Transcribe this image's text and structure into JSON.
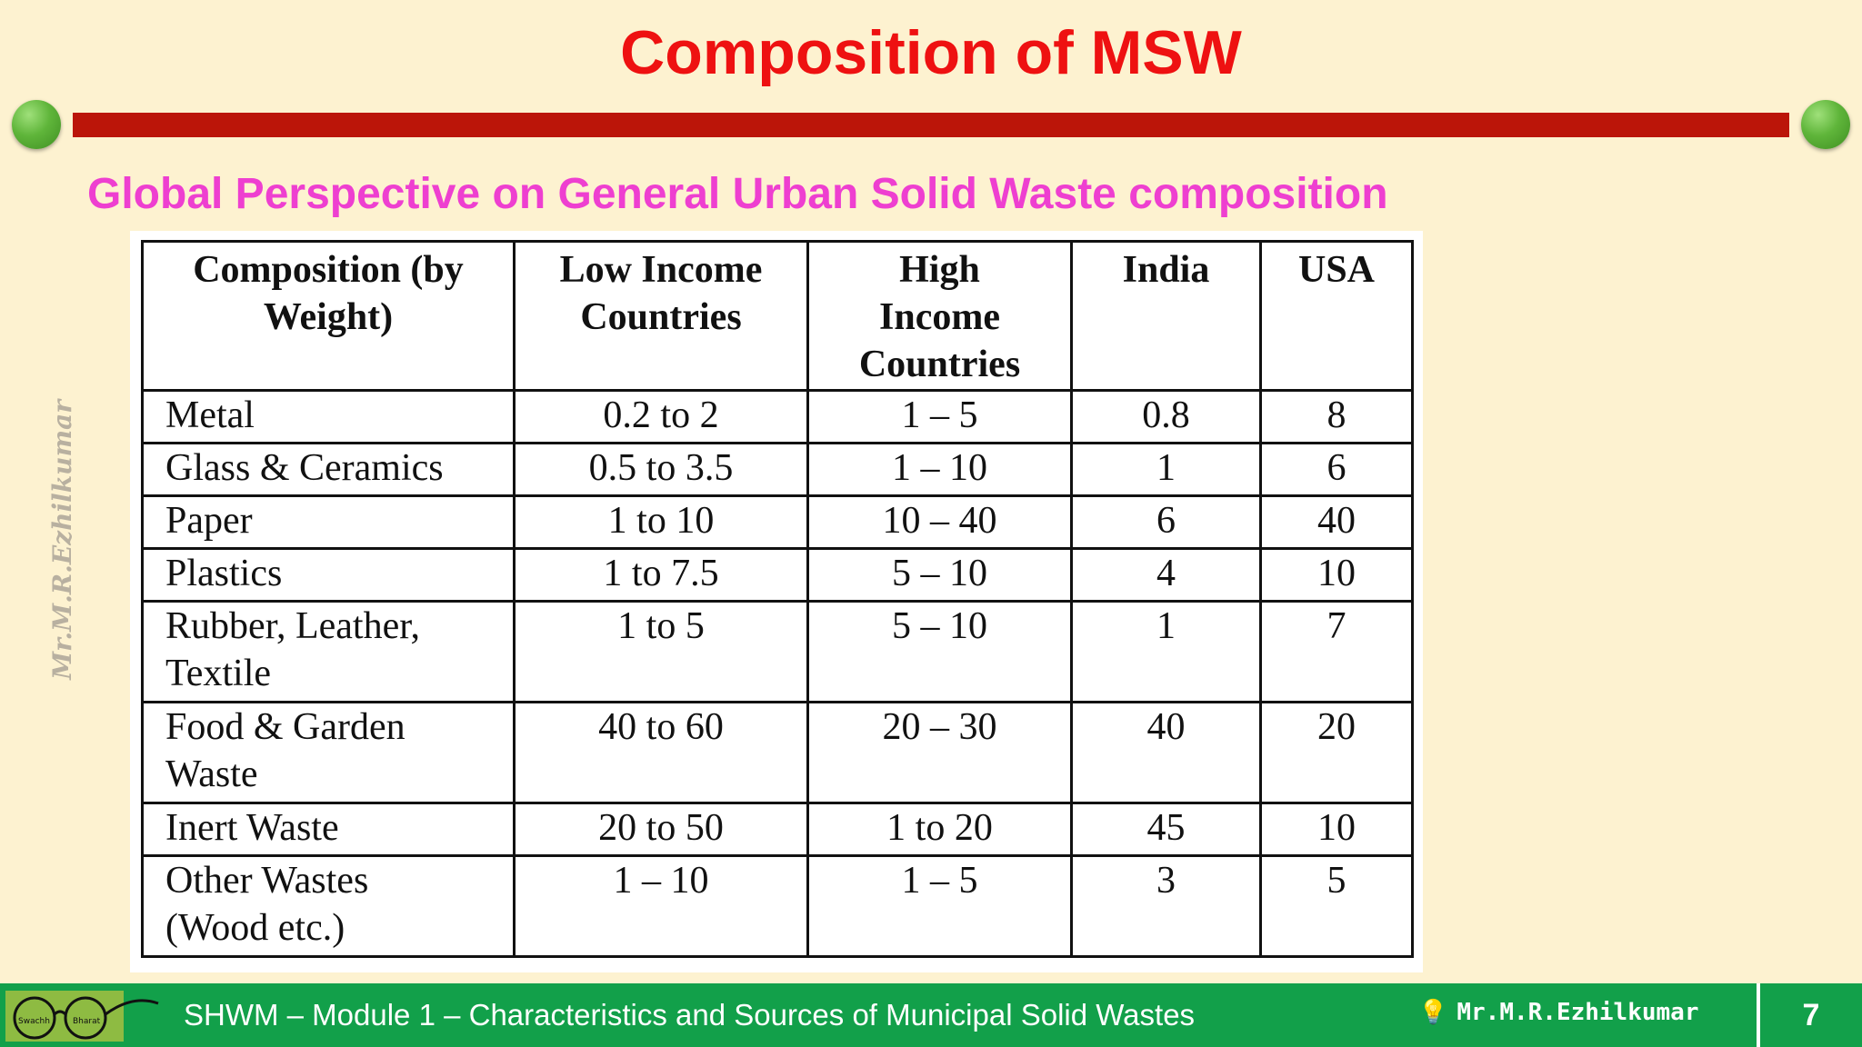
{
  "slide": {
    "title": "Composition of MSW",
    "subtitle": "Global Perspective on General Urban Solid Waste composition"
  },
  "table": {
    "headers": [
      [
        "Composition (by",
        "Weight)"
      ],
      [
        "Low Income",
        "Countries"
      ],
      [
        "High",
        "Income",
        "Countries"
      ],
      [
        "India"
      ],
      [
        "USA"
      ]
    ],
    "rows": [
      {
        "label": [
          "Metal"
        ],
        "low": "0.2 to 2",
        "high": "1 – 5",
        "india": "0.8",
        "usa": "8"
      },
      {
        "label": [
          "Glass & Ceramics"
        ],
        "low": "0.5 to 3.5",
        "high": "1 – 10",
        "india": "1",
        "usa": "6"
      },
      {
        "label": [
          "Paper"
        ],
        "low": "1 to 10",
        "high": "10 – 40",
        "india": "6",
        "usa": "40"
      },
      {
        "label": [
          "Plastics"
        ],
        "low": "1 to 7.5",
        "high": "5 – 10",
        "india": "4",
        "usa": "10"
      },
      {
        "label": [
          "Rubber, Leather,",
          "Textile"
        ],
        "low": "1 to 5",
        "high": "5 – 10",
        "india": "1",
        "usa": "7"
      },
      {
        "label": [
          "Food & Garden",
          "Waste"
        ],
        "low": "40 to 60",
        "high": "20 – 30",
        "india": "40",
        "usa": "20"
      },
      {
        "label": [
          "Inert Waste"
        ],
        "low": "20 to 50",
        "high": "1 to 20",
        "india": "45",
        "usa": "10"
      },
      {
        "label": [
          "Other Wastes",
          "(Wood etc.)"
        ],
        "low": "1 – 10",
        "high": "1 – 5",
        "india": "3",
        "usa": "5"
      }
    ]
  },
  "watermark": "Mr.M.R.Ezhilkumar",
  "footer": {
    "module_text": "SHWM – Module 1 – Characteristics and Sources of Municipal Solid Wastes",
    "author": "Mr.M.R.Ezhilkumar",
    "author_icon": "lightbulb-icon",
    "page_number": "7",
    "logo_text_left": "Swachh",
    "logo_text_right": "Bharat"
  },
  "colors": {
    "background": "#fdf2d0",
    "title": "#ee1111",
    "subtitle": "#ee3fd0",
    "rule": "#bb1509",
    "footer": "#12a04a"
  }
}
